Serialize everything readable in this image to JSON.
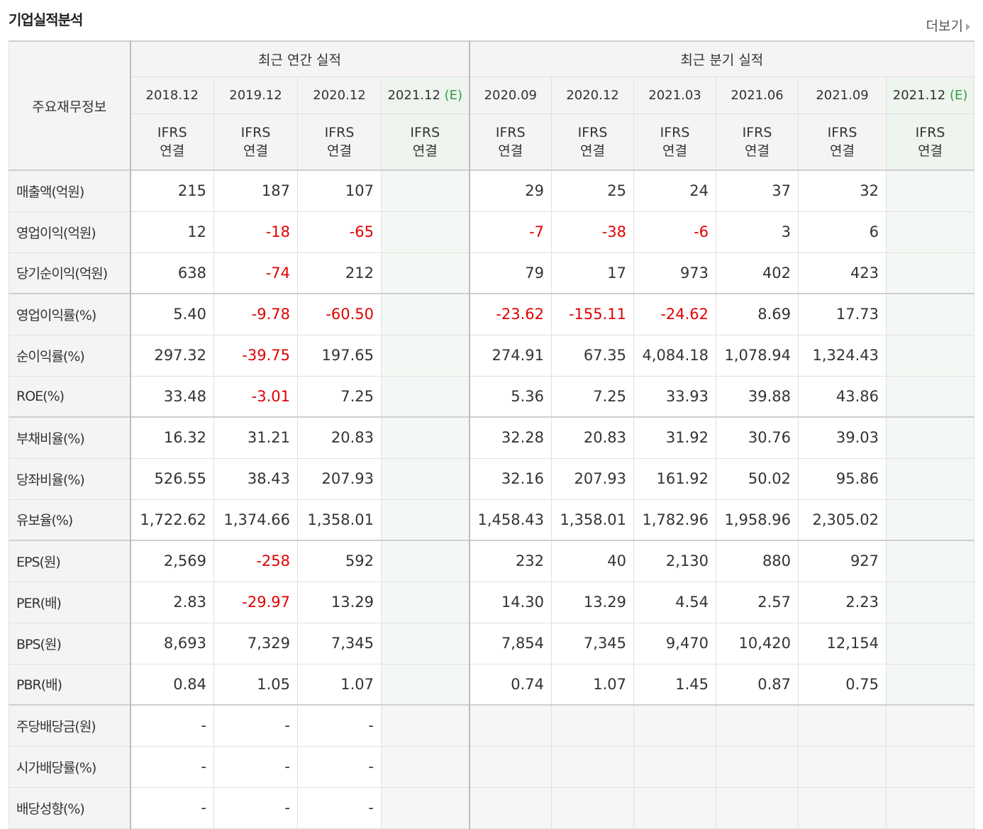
{
  "header": {
    "title": "기업실적분석",
    "more_label": "더보기"
  },
  "table": {
    "corner_label": "주요재무정보",
    "group_annual": "최근 연간 실적",
    "group_quarter": "최근 분기 실적",
    "periods": [
      {
        "label": "2018.12",
        "est": ""
      },
      {
        "label": "2019.12",
        "est": ""
      },
      {
        "label": "2020.12",
        "est": ""
      },
      {
        "label": "2021.12",
        "est": "(E)"
      },
      {
        "label": "2020.09",
        "est": ""
      },
      {
        "label": "2020.12",
        "est": ""
      },
      {
        "label": "2021.03",
        "est": ""
      },
      {
        "label": "2021.06",
        "est": ""
      },
      {
        "label": "2021.09",
        "est": ""
      },
      {
        "label": "2021.12",
        "est": "(E)"
      }
    ],
    "basis_line1": "IFRS",
    "basis_line2": "연결",
    "rows": [
      {
        "label": "매출액(억원)",
        "values": [
          "215",
          "187",
          "107",
          "",
          "29",
          "25",
          "24",
          "37",
          "32",
          ""
        ]
      },
      {
        "label": "영업이익(억원)",
        "values": [
          "12",
          "-18",
          "-65",
          "",
          "-7",
          "-38",
          "-6",
          "3",
          "6",
          ""
        ]
      },
      {
        "label": "당기순이익(억원)",
        "values": [
          "638",
          "-74",
          "212",
          "",
          "79",
          "17",
          "973",
          "402",
          "423",
          ""
        ]
      },
      {
        "label": "영업이익률(%)",
        "values": [
          "5.40",
          "-9.78",
          "-60.50",
          "",
          "-23.62",
          "-155.11",
          "-24.62",
          "8.69",
          "17.73",
          ""
        ]
      },
      {
        "label": "순이익률(%)",
        "values": [
          "297.32",
          "-39.75",
          "197.65",
          "",
          "274.91",
          "67.35",
          "4,084.18",
          "1,078.94",
          "1,324.43",
          ""
        ]
      },
      {
        "label": "ROE(%)",
        "values": [
          "33.48",
          "-3.01",
          "7.25",
          "",
          "5.36",
          "7.25",
          "33.93",
          "39.88",
          "43.86",
          ""
        ]
      },
      {
        "label": "부채비율(%)",
        "values": [
          "16.32",
          "31.21",
          "20.83",
          "",
          "32.28",
          "20.83",
          "31.92",
          "30.76",
          "39.03",
          ""
        ]
      },
      {
        "label": "당좌비율(%)",
        "values": [
          "526.55",
          "38.43",
          "207.93",
          "",
          "32.16",
          "207.93",
          "161.92",
          "50.02",
          "95.86",
          ""
        ]
      },
      {
        "label": "유보율(%)",
        "values": [
          "1,722.62",
          "1,374.66",
          "1,358.01",
          "",
          "1,458.43",
          "1,358.01",
          "1,782.96",
          "1,958.96",
          "2,305.02",
          ""
        ]
      },
      {
        "label": "EPS(원)",
        "values": [
          "2,569",
          "-258",
          "592",
          "",
          "232",
          "40",
          "2,130",
          "880",
          "927",
          ""
        ]
      },
      {
        "label": "PER(배)",
        "values": [
          "2.83",
          "-29.97",
          "13.29",
          "",
          "14.30",
          "13.29",
          "4.54",
          "2.57",
          "2.23",
          ""
        ]
      },
      {
        "label": "BPS(원)",
        "values": [
          "8,693",
          "7,329",
          "7,345",
          "",
          "7,854",
          "7,345",
          "9,470",
          "10,420",
          "12,154",
          ""
        ]
      },
      {
        "label": "PBR(배)",
        "values": [
          "0.84",
          "1.05",
          "1.07",
          "",
          "0.74",
          "1.07",
          "1.45",
          "0.87",
          "0.75",
          ""
        ]
      },
      {
        "label": "주당배당금(원)",
        "values": [
          "-",
          "-",
          "-",
          "",
          "",
          "",
          "",
          "",
          "",
          ""
        ]
      },
      {
        "label": "시가배당률(%)",
        "values": [
          "-",
          "-",
          "-",
          "",
          "",
          "",
          "",
          "",
          "",
          ""
        ]
      },
      {
        "label": "배당성향(%)",
        "values": [
          "-",
          "-",
          "-",
          "",
          "",
          "",
          "",
          "",
          "",
          ""
        ]
      }
    ]
  },
  "colors": {
    "negative": "#e00000",
    "ifrs": "#ff6a1a",
    "estimate": "#2f9e44"
  }
}
